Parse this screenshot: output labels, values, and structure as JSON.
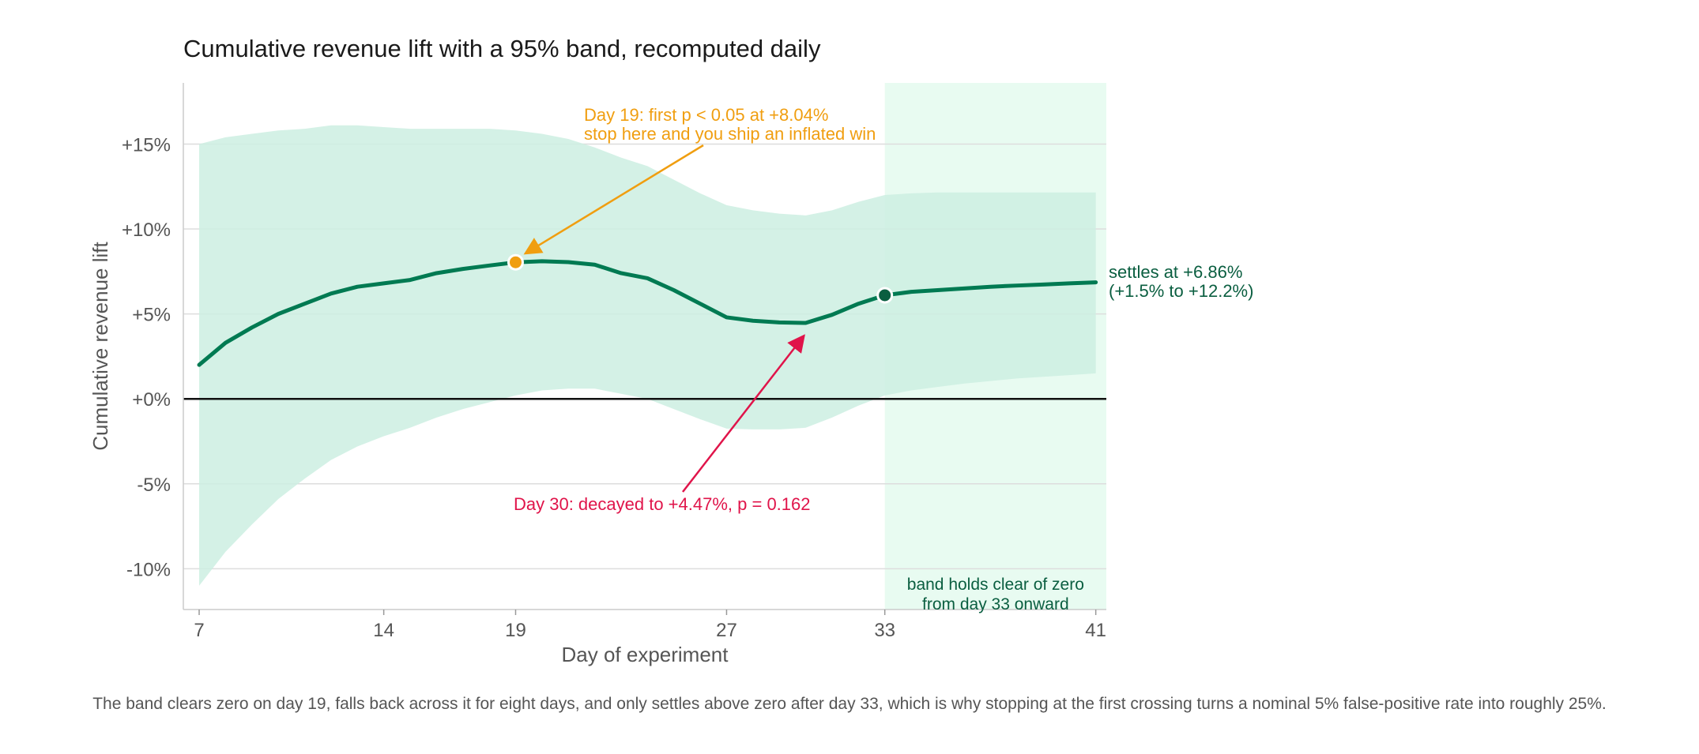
{
  "title": "Cumulative revenue lift with a 95% band, recomputed daily",
  "caption": "The band clears zero on day 19, falls back across it for eight days, and only settles above zero after day 33, which is why stopping at the first crossing turns a nominal 5% false-positive rate into roughly 25%.",
  "colors": {
    "line": "#007a52",
    "band": "#cdeee2",
    "shade": "#e8fbf1",
    "orange": "#f09e10",
    "red": "#e0144a",
    "dark_green": "#0a5e40",
    "zero_line": "#111111",
    "grid": "#dddddd",
    "axis_text": "#555555"
  },
  "chart_data": {
    "type": "line",
    "title": "Cumulative revenue lift with a 95% band, recomputed daily",
    "xlabel": "Day of experiment",
    "ylabel": "Cumulative revenue lift",
    "xlim": [
      6.4,
      41.4
    ],
    "ylim": [
      -12.4,
      18.6
    ],
    "xticks": [
      7,
      14,
      19,
      27,
      33,
      41
    ],
    "xtick_labels": [
      "7",
      "14",
      "19",
      "27",
      "33",
      "41"
    ],
    "yticks": [
      -10,
      -5,
      0,
      5,
      10,
      15
    ],
    "ytick_labels": [
      "-10%",
      "-5%",
      "+0%",
      "+5%",
      "+10%",
      "+15%"
    ],
    "grid": "horizontal",
    "x": [
      7,
      8,
      9,
      10,
      11,
      12,
      13,
      14,
      15,
      16,
      17,
      18,
      19,
      20,
      21,
      22,
      23,
      24,
      25,
      26,
      27,
      28,
      29,
      30,
      31,
      32,
      33,
      34,
      35,
      36,
      37,
      38,
      39,
      40,
      41
    ],
    "series": [
      {
        "values": [
          2.0,
          3.3,
          4.2,
          5.0,
          5.6,
          6.2,
          6.6,
          6.8,
          7.0,
          7.4,
          7.65,
          7.85,
          8.04,
          8.1,
          8.05,
          7.9,
          7.4,
          7.1,
          6.4,
          5.6,
          4.8,
          4.6,
          4.5,
          4.47,
          4.95,
          5.6,
          6.1,
          6.3,
          6.4,
          6.5,
          6.6,
          6.67,
          6.73,
          6.8,
          6.86
        ]
      }
    ],
    "band": {
      "upper": [
        15.0,
        15.4,
        15.6,
        15.8,
        15.9,
        16.1,
        16.1,
        16.0,
        15.9,
        15.9,
        15.9,
        15.9,
        15.8,
        15.6,
        15.3,
        14.8,
        14.2,
        13.7,
        12.9,
        12.1,
        11.4,
        11.1,
        10.9,
        10.8,
        11.1,
        11.6,
        12.0,
        12.1,
        12.15,
        12.15,
        12.15,
        12.15,
        12.15,
        12.15,
        12.15
      ],
      "lower": [
        -11.0,
        -9.0,
        -7.4,
        -5.9,
        -4.7,
        -3.6,
        -2.8,
        -2.2,
        -1.7,
        -1.1,
        -0.6,
        -0.2,
        0.2,
        0.5,
        0.6,
        0.6,
        0.3,
        0.0,
        -0.6,
        -1.2,
        -1.75,
        -1.8,
        -1.8,
        -1.7,
        -1.1,
        -0.4,
        0.2,
        0.5,
        0.7,
        0.9,
        1.05,
        1.2,
        1.3,
        1.4,
        1.5
      ]
    },
    "shaded_region": {
      "x_start": 33,
      "x_end": 41.4,
      "label_lines": [
        "band holds clear of zero",
        "from day 33 onward"
      ]
    },
    "annotations": [
      {
        "id": "first-crossing",
        "x": 19,
        "y": 8.04,
        "lines": [
          "Day 19: first p < 0.05 at +8.04%",
          "stop here and you ship an inflated win"
        ]
      },
      {
        "id": "decay",
        "x": 30,
        "y": 4.47,
        "lines": [
          "Day 30: decayed to +4.47%, p = 0.162"
        ]
      },
      {
        "id": "settle",
        "x": 41,
        "y": 6.86,
        "lines": [
          "settles at +6.86%",
          "(+1.5% to +12.2%)"
        ]
      }
    ],
    "markers": [
      {
        "x": 19,
        "y": 8.04,
        "role": "first-crossing"
      },
      {
        "x": 33,
        "y": 6.1,
        "role": "settle-start"
      }
    ]
  }
}
